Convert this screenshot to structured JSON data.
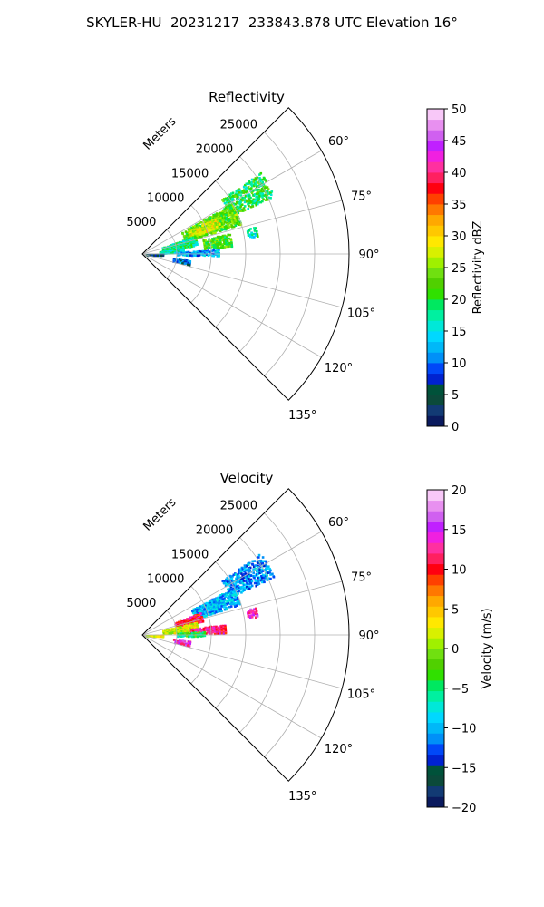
{
  "figure": {
    "suptitle": "SKYLER-HU  20231217  233843.878 UTC Elevation 16°"
  },
  "chart_data": [
    {
      "type": "heatmap",
      "projection": "polar-sector",
      "title": "Reflectivity",
      "theta_range_deg": [
        45,
        135
      ],
      "theta_ticks_deg": [
        60,
        75,
        90,
        105,
        120,
        135
      ],
      "theta_tick_labels": [
        "60°",
        "75°",
        "90°",
        "105°",
        "120°",
        "135°"
      ],
      "r_label": "Meters",
      "r_range": [
        0,
        30000
      ],
      "r_ticks": [
        5000,
        10000,
        15000,
        20000,
        25000
      ],
      "r_tick_labels": [
        "5000",
        "10000",
        "15000",
        "20000",
        "25000"
      ],
      "grid": true,
      "colorbar": {
        "label": "Reflectivity dBZ",
        "range": [
          0,
          50
        ],
        "ticks": [
          0,
          5,
          10,
          15,
          20,
          25,
          30,
          35,
          40,
          45,
          50
        ],
        "tick_labels": [
          "0",
          "5",
          "10",
          "15",
          "20",
          "25",
          "30",
          "35",
          "40",
          "45",
          "50"
        ],
        "colors": [
          "#0a1a5e",
          "#123a74",
          "#0b4a3a",
          "#00523a",
          "#0022d0",
          "#0048f8",
          "#0090f8",
          "#00b8f8",
          "#00d8ff",
          "#00e8d8",
          "#00f0a0",
          "#00e860",
          "#30e000",
          "#50d000",
          "#70e010",
          "#a0f000",
          "#d8f000",
          "#ffe800",
          "#ffc800",
          "#ffa800",
          "#ff7800",
          "#ff4000",
          "#ff0010",
          "#ff2060",
          "#ff30a0",
          "#f020e0",
          "#c020ff",
          "#d060f0",
          "#e890f0",
          "#f8c8f8"
        ]
      },
      "echo_regions": [
        {
          "theta": [
            55,
            66
          ],
          "r": [
            14000,
            21000
          ],
          "value": 20
        },
        {
          "theta": [
            60,
            72
          ],
          "r": [
            6500,
            15000
          ],
          "value": 23
        },
        {
          "theta": [
            63,
            70
          ],
          "r": [
            7500,
            12000
          ],
          "value": 28
        },
        {
          "theta": [
            70,
            80
          ],
          "r": [
            3000,
            8000
          ],
          "value": 18
        },
        {
          "theta": [
            80,
            86
          ],
          "r": [
            2500,
            6000
          ],
          "value": 17
        },
        {
          "theta": [
            86,
            90
          ],
          "r": [
            5000,
            11000
          ],
          "value": 12
        },
        {
          "theta": [
            76,
            84
          ],
          "r": [
            9000,
            13000
          ],
          "value": 22
        },
        {
          "theta": [
            88,
            92
          ],
          "r": [
            500,
            3000
          ],
          "value": 6
        },
        {
          "theta": [
            97,
            102
          ],
          "r": [
            4500,
            7000
          ],
          "value": 10
        },
        {
          "theta": [
            76,
            80
          ],
          "r": [
            15500,
            17000
          ],
          "value": 17
        }
      ]
    },
    {
      "type": "heatmap",
      "projection": "polar-sector",
      "title": "Velocity",
      "theta_range_deg": [
        45,
        135
      ],
      "theta_ticks_deg": [
        60,
        75,
        90,
        105,
        120,
        135
      ],
      "theta_tick_labels": [
        "60°",
        "75°",
        "90°",
        "105°",
        "120°",
        "135°"
      ],
      "r_label": "Meters",
      "r_range": [
        0,
        30000
      ],
      "r_ticks": [
        5000,
        10000,
        15000,
        20000,
        25000
      ],
      "r_tick_labels": [
        "5000",
        "10000",
        "15000",
        "20000",
        "25000"
      ],
      "grid": true,
      "colorbar": {
        "label": "Velocity (m/s)",
        "range": [
          -20,
          20
        ],
        "ticks": [
          -20,
          -15,
          -10,
          -5,
          0,
          5,
          10,
          15,
          20
        ],
        "tick_labels": [
          "−20",
          "−15",
          "−10",
          "−5",
          "0",
          "5",
          "10",
          "15",
          "20"
        ],
        "colors": [
          "#0a1a5e",
          "#123a74",
          "#0b4a3a",
          "#00523a",
          "#0022d0",
          "#0048f8",
          "#0090f8",
          "#00b8f8",
          "#00d8ff",
          "#00e8d8",
          "#00f0a0",
          "#00e860",
          "#30e000",
          "#50d000",
          "#70e010",
          "#a0f000",
          "#d8f000",
          "#ffe800",
          "#ffc800",
          "#ffa800",
          "#ff7800",
          "#ff4000",
          "#ff0010",
          "#ff2060",
          "#ff30a0",
          "#f020e0",
          "#c020ff",
          "#d060f0",
          "#e890f0",
          "#f8c8f8"
        ]
      },
      "echo_regions": [
        {
          "theta": [
            55,
            66
          ],
          "r": [
            14000,
            21000
          ],
          "value": -11
        },
        {
          "theta": [
            62,
            72
          ],
          "r": [
            8000,
            15000
          ],
          "value": -10
        },
        {
          "theta": [
            68,
            76
          ],
          "r": [
            5000,
            9000
          ],
          "value": 11
        },
        {
          "theta": [
            76,
            84
          ],
          "r": [
            3000,
            8000
          ],
          "value": 2
        },
        {
          "theta": [
            82,
            88
          ],
          "r": [
            7000,
            12000
          ],
          "value": 12
        },
        {
          "theta": [
            86,
            90
          ],
          "r": [
            5000,
            9000
          ],
          "value": -4
        },
        {
          "theta": [
            88,
            92
          ],
          "r": [
            500,
            3000
          ],
          "value": 3
        },
        {
          "theta": [
            97,
            102
          ],
          "r": [
            4500,
            7000
          ],
          "value": 14
        },
        {
          "theta": [
            76,
            80
          ],
          "r": [
            15500,
            17000
          ],
          "value": 14
        }
      ]
    }
  ]
}
